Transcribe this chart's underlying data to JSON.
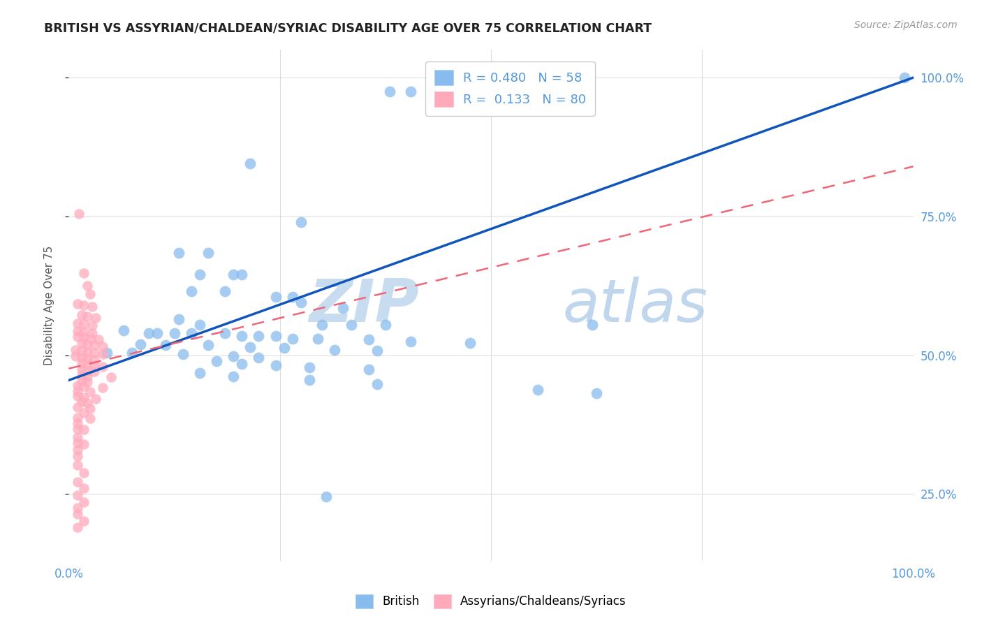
{
  "title": "BRITISH VS ASSYRIAN/CHALDEAN/SYRIAC DISABILITY AGE OVER 75 CORRELATION CHART",
  "source": "Source: ZipAtlas.com",
  "ylabel": "Disability Age Over 75",
  "xlim": [
    0.0,
    1.0
  ],
  "ylim": [
    0.13,
    1.05
  ],
  "xticks": [
    0.0,
    0.25,
    0.5,
    0.75,
    1.0
  ],
  "xtick_labels": [
    "0.0%",
    "",
    "",
    "",
    "100.0%"
  ],
  "yticks": [
    0.25,
    0.5,
    0.75,
    1.0
  ],
  "ytick_labels_right": [
    "25.0%",
    "50.0%",
    "75.0%",
    "100.0%"
  ],
  "watermark_zip": "ZIP",
  "watermark_atlas": "atlas",
  "blue_color": "#88BBEE",
  "pink_color": "#FFAABB",
  "line_blue": "#1155BB",
  "line_pink": "#EE6677",
  "title_color": "#222222",
  "source_color": "#999999",
  "axis_color": "#5599DD",
  "grid_color": "#DDDDDD",
  "blue_line_x": [
    0.0,
    1.0
  ],
  "blue_line_y": [
    0.455,
    1.0
  ],
  "pink_line_x": [
    0.0,
    1.0
  ],
  "pink_line_y": [
    0.476,
    0.84
  ],
  "blue_scatter": [
    [
      0.38,
      0.975
    ],
    [
      0.405,
      0.975
    ],
    [
      0.215,
      0.845
    ],
    [
      0.275,
      0.74
    ],
    [
      0.13,
      0.685
    ],
    [
      0.165,
      0.685
    ],
    [
      0.155,
      0.645
    ],
    [
      0.195,
      0.645
    ],
    [
      0.205,
      0.645
    ],
    [
      0.145,
      0.615
    ],
    [
      0.185,
      0.615
    ],
    [
      0.245,
      0.605
    ],
    [
      0.265,
      0.605
    ],
    [
      0.275,
      0.595
    ],
    [
      0.325,
      0.585
    ],
    [
      0.13,
      0.565
    ],
    [
      0.155,
      0.555
    ],
    [
      0.3,
      0.555
    ],
    [
      0.335,
      0.555
    ],
    [
      0.375,
      0.555
    ],
    [
      0.62,
      0.555
    ],
    [
      0.065,
      0.545
    ],
    [
      0.095,
      0.54
    ],
    [
      0.105,
      0.54
    ],
    [
      0.125,
      0.54
    ],
    [
      0.145,
      0.54
    ],
    [
      0.185,
      0.54
    ],
    [
      0.205,
      0.535
    ],
    [
      0.225,
      0.535
    ],
    [
      0.245,
      0.535
    ],
    [
      0.265,
      0.53
    ],
    [
      0.295,
      0.53
    ],
    [
      0.355,
      0.528
    ],
    [
      0.405,
      0.525
    ],
    [
      0.475,
      0.522
    ],
    [
      0.085,
      0.52
    ],
    [
      0.115,
      0.518
    ],
    [
      0.165,
      0.518
    ],
    [
      0.215,
      0.515
    ],
    [
      0.255,
      0.513
    ],
    [
      0.315,
      0.51
    ],
    [
      0.365,
      0.508
    ],
    [
      0.045,
      0.505
    ],
    [
      0.075,
      0.505
    ],
    [
      0.135,
      0.502
    ],
    [
      0.195,
      0.498
    ],
    [
      0.225,
      0.496
    ],
    [
      0.175,
      0.49
    ],
    [
      0.205,
      0.485
    ],
    [
      0.245,
      0.482
    ],
    [
      0.285,
      0.478
    ],
    [
      0.355,
      0.475
    ],
    [
      0.155,
      0.468
    ],
    [
      0.195,
      0.462
    ],
    [
      0.285,
      0.455
    ],
    [
      0.365,
      0.448
    ],
    [
      0.555,
      0.438
    ],
    [
      0.625,
      0.432
    ],
    [
      0.305,
      0.245
    ],
    [
      0.99,
      1.0
    ]
  ],
  "pink_scatter": [
    [
      0.012,
      0.755
    ],
    [
      0.018,
      0.648
    ],
    [
      0.022,
      0.625
    ],
    [
      0.025,
      0.61
    ],
    [
      0.01,
      0.592
    ],
    [
      0.018,
      0.59
    ],
    [
      0.028,
      0.588
    ],
    [
      0.015,
      0.572
    ],
    [
      0.022,
      0.57
    ],
    [
      0.032,
      0.568
    ],
    [
      0.01,
      0.558
    ],
    [
      0.018,
      0.556
    ],
    [
      0.028,
      0.554
    ],
    [
      0.01,
      0.544
    ],
    [
      0.018,
      0.542
    ],
    [
      0.028,
      0.54
    ],
    [
      0.01,
      0.534
    ],
    [
      0.018,
      0.532
    ],
    [
      0.026,
      0.53
    ],
    [
      0.035,
      0.528
    ],
    [
      0.015,
      0.522
    ],
    [
      0.022,
      0.52
    ],
    [
      0.03,
      0.518
    ],
    [
      0.04,
      0.516
    ],
    [
      0.008,
      0.51
    ],
    [
      0.015,
      0.508
    ],
    [
      0.022,
      0.506
    ],
    [
      0.03,
      0.504
    ],
    [
      0.04,
      0.502
    ],
    [
      0.008,
      0.498
    ],
    [
      0.015,
      0.496
    ],
    [
      0.022,
      0.494
    ],
    [
      0.03,
      0.492
    ],
    [
      0.015,
      0.486
    ],
    [
      0.022,
      0.484
    ],
    [
      0.03,
      0.482
    ],
    [
      0.04,
      0.48
    ],
    [
      0.015,
      0.474
    ],
    [
      0.022,
      0.472
    ],
    [
      0.03,
      0.47
    ],
    [
      0.015,
      0.464
    ],
    [
      0.022,
      0.462
    ],
    [
      0.05,
      0.46
    ],
    [
      0.015,
      0.454
    ],
    [
      0.022,
      0.452
    ],
    [
      0.01,
      0.446
    ],
    [
      0.018,
      0.444
    ],
    [
      0.04,
      0.442
    ],
    [
      0.01,
      0.436
    ],
    [
      0.025,
      0.434
    ],
    [
      0.01,
      0.426
    ],
    [
      0.018,
      0.424
    ],
    [
      0.032,
      0.422
    ],
    [
      0.015,
      0.416
    ],
    [
      0.022,
      0.414
    ],
    [
      0.01,
      0.406
    ],
    [
      0.025,
      0.404
    ],
    [
      0.018,
      0.396
    ],
    [
      0.01,
      0.388
    ],
    [
      0.025,
      0.386
    ],
    [
      0.01,
      0.378
    ],
    [
      0.01,
      0.368
    ],
    [
      0.018,
      0.366
    ],
    [
      0.01,
      0.352
    ],
    [
      0.01,
      0.342
    ],
    [
      0.018,
      0.34
    ],
    [
      0.01,
      0.33
    ],
    [
      0.01,
      0.318
    ],
    [
      0.01,
      0.302
    ],
    [
      0.018,
      0.288
    ],
    [
      0.01,
      0.272
    ],
    [
      0.018,
      0.26
    ],
    [
      0.01,
      0.248
    ],
    [
      0.018,
      0.236
    ],
    [
      0.01,
      0.225
    ],
    [
      0.01,
      0.214
    ],
    [
      0.018,
      0.202
    ],
    [
      0.01,
      0.19
    ]
  ]
}
